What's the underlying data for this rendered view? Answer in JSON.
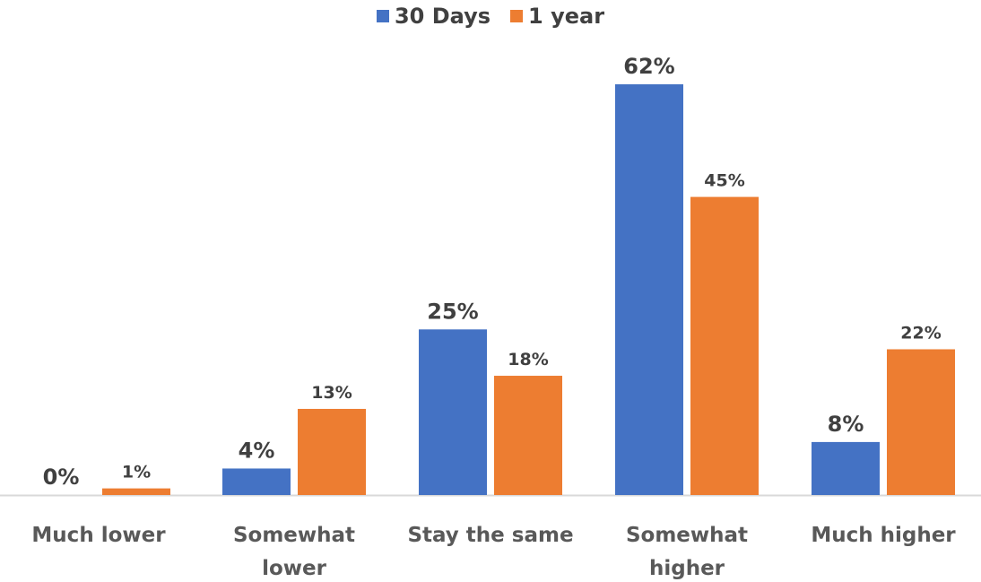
{
  "chart_data": {
    "type": "bar",
    "categories": [
      [
        "Much lower"
      ],
      [
        "Somewhat",
        "lower"
      ],
      [
        "Stay the same"
      ],
      [
        "Somewhat",
        "higher"
      ],
      [
        "Much higher"
      ]
    ],
    "series": [
      {
        "name": "30 Days",
        "color": "#4472C4",
        "values": [
          0,
          4,
          25,
          62,
          8
        ],
        "labels": [
          "0%",
          "4%",
          "25%",
          "62%",
          "8%"
        ]
      },
      {
        "name": "1 year",
        "color": "#ED7D31",
        "values": [
          1,
          13,
          18,
          45,
          22
        ],
        "labels": [
          "1%",
          "13%",
          "18%",
          "45%",
          "22%"
        ]
      }
    ],
    "title": "",
    "xlabel": "",
    "ylabel": "",
    "ylim": [
      0,
      62
    ],
    "grid": false,
    "legend": "top-center"
  }
}
